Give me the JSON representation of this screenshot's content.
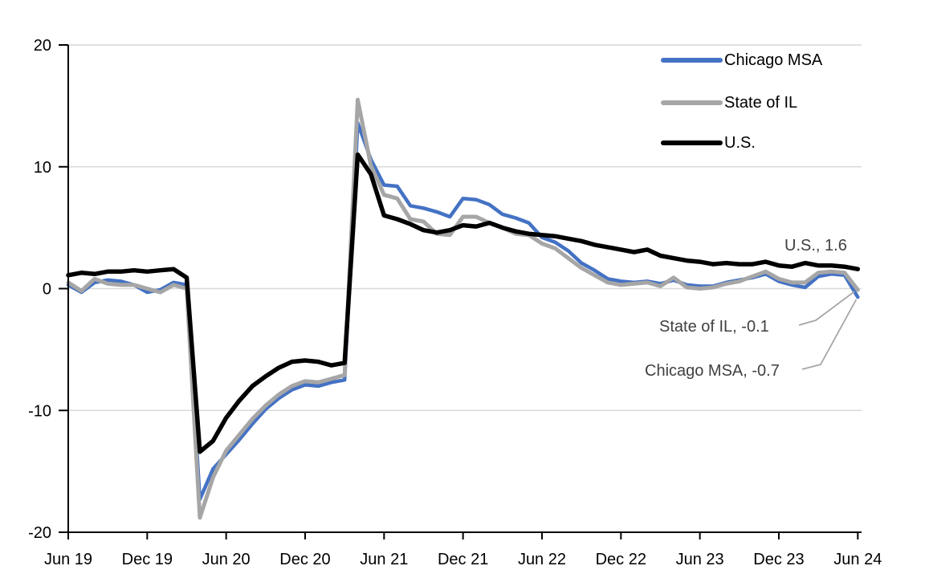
{
  "chart_data": {
    "type": "line",
    "title": "",
    "ylabel": "",
    "xlabel": "",
    "y_axis": {
      "min": -20,
      "max": 20,
      "ticks": [
        20,
        10,
        0,
        -10,
        -20
      ]
    },
    "x_axis": {
      "tick_every_months": 6,
      "tick_labels": [
        "Jun 19",
        "Dec 19",
        "Jun 20",
        "Dec 20",
        "Jun 21",
        "Dec 21",
        "Jun 22",
        "Dec 22",
        "Jun 23",
        "Dec 23",
        "Jun 24"
      ]
    },
    "grid": {
      "show": true,
      "color": "#D9D9D9",
      "values": [
        20,
        10,
        0,
        -10
      ]
    },
    "axis_color": "#000000",
    "legend": {
      "position": "top-right"
    },
    "x": [
      "Jun 19",
      "Jul 19",
      "Aug 19",
      "Sep 19",
      "Oct 19",
      "Nov 19",
      "Dec 19",
      "Jan 20",
      "Feb 20",
      "Mar 20",
      "Apr 20",
      "May 20",
      "Jun 20",
      "Jul 20",
      "Aug 20",
      "Sep 20",
      "Oct 20",
      "Nov 20",
      "Dec 20",
      "Jan 21",
      "Feb 21",
      "Mar 21",
      "Apr 21",
      "May 21",
      "Jun 21",
      "Jul 21",
      "Aug 21",
      "Sep 21",
      "Oct 21",
      "Nov 21",
      "Dec 21",
      "Jan 22",
      "Feb 22",
      "Mar 22",
      "Apr 22",
      "May 22",
      "Jun 22",
      "Jul 22",
      "Aug 22",
      "Sep 22",
      "Oct 22",
      "Nov 22",
      "Dec 22",
      "Jan 23",
      "Feb 23",
      "Mar 23",
      "Apr 23",
      "May 23",
      "Jun 23",
      "Jul 23",
      "Aug 23",
      "Sep 23",
      "Oct 23",
      "Nov 23",
      "Dec 23",
      "Jan 24",
      "Feb 24",
      "Mar 24",
      "Apr 24",
      "May 24",
      "Jun 24"
    ],
    "series": [
      {
        "name": "Chicago MSA",
        "color": "#4472C4",
        "stroke_width": 4.5,
        "values": [
          0.3,
          -0.3,
          0.5,
          0.7,
          0.6,
          0.3,
          -0.3,
          -0.1,
          0.5,
          0.3,
          -17.3,
          -14.8,
          -13.6,
          -12.4,
          -11.1,
          -9.9,
          -9.0,
          -8.3,
          -7.9,
          -8.0,
          -7.7,
          -7.5,
          13.6,
          10.6,
          8.5,
          8.4,
          6.8,
          6.6,
          6.3,
          5.9,
          7.4,
          7.3,
          6.9,
          6.1,
          5.8,
          5.4,
          4.2,
          3.8,
          3.1,
          2.1,
          1.5,
          0.8,
          0.6,
          0.5,
          0.6,
          0.4,
          0.7,
          0.3,
          0.2,
          0.2,
          0.5,
          0.7,
          0.9,
          1.2,
          0.6,
          0.3,
          0.1,
          1.0,
          1.2,
          1.1,
          -0.7
        ]
      },
      {
        "name": "State of IL",
        "color": "#A6A6A6",
        "stroke_width": 5,
        "values": [
          0.5,
          -0.2,
          0.8,
          0.4,
          0.3,
          0.3,
          0.0,
          -0.3,
          0.3,
          0.0,
          -18.8,
          -15.5,
          -13.3,
          -12.0,
          -10.7,
          -9.6,
          -8.7,
          -8.0,
          -7.6,
          -7.7,
          -7.4,
          -7.1,
          15.5,
          10.1,
          7.7,
          7.4,
          5.7,
          5.5,
          4.5,
          4.4,
          5.9,
          5.9,
          5.4,
          5.0,
          4.5,
          4.4,
          3.7,
          3.3,
          2.5,
          1.7,
          1.1,
          0.5,
          0.3,
          0.4,
          0.5,
          0.2,
          0.9,
          0.1,
          0.0,
          0.1,
          0.4,
          0.6,
          1.0,
          1.4,
          0.8,
          0.5,
          0.5,
          1.3,
          1.4,
          1.3,
          -0.1
        ]
      },
      {
        "name": "U.S.",
        "color": "#000000",
        "stroke_width": 5.5,
        "values": [
          1.1,
          1.3,
          1.2,
          1.4,
          1.4,
          1.5,
          1.4,
          1.5,
          1.6,
          0.9,
          -13.4,
          -12.5,
          -10.6,
          -9.2,
          -8.0,
          -7.2,
          -6.5,
          -6.0,
          -5.9,
          -6.0,
          -6.3,
          -6.1,
          11.0,
          9.4,
          6.0,
          5.7,
          5.3,
          4.8,
          4.6,
          4.8,
          5.2,
          5.1,
          5.4,
          5.0,
          4.7,
          4.5,
          4.4,
          4.3,
          4.1,
          3.9,
          3.6,
          3.4,
          3.2,
          3.0,
          3.2,
          2.7,
          2.5,
          2.3,
          2.2,
          2.0,
          2.1,
          2.0,
          2.0,
          2.2,
          1.9,
          1.8,
          2.1,
          1.9,
          1.9,
          1.8,
          1.6
        ]
      }
    ],
    "annotations": [
      {
        "text": "U.S., 1.6",
        "series": "U.S.",
        "value": 1.6
      },
      {
        "text": "State of IL, -0.1",
        "series": "State of IL",
        "value": -0.1
      },
      {
        "text": "Chicago MSA, -0.7",
        "series": "Chicago MSA",
        "value": -0.7
      }
    ],
    "leader_line_color": "#A6A6A6"
  }
}
